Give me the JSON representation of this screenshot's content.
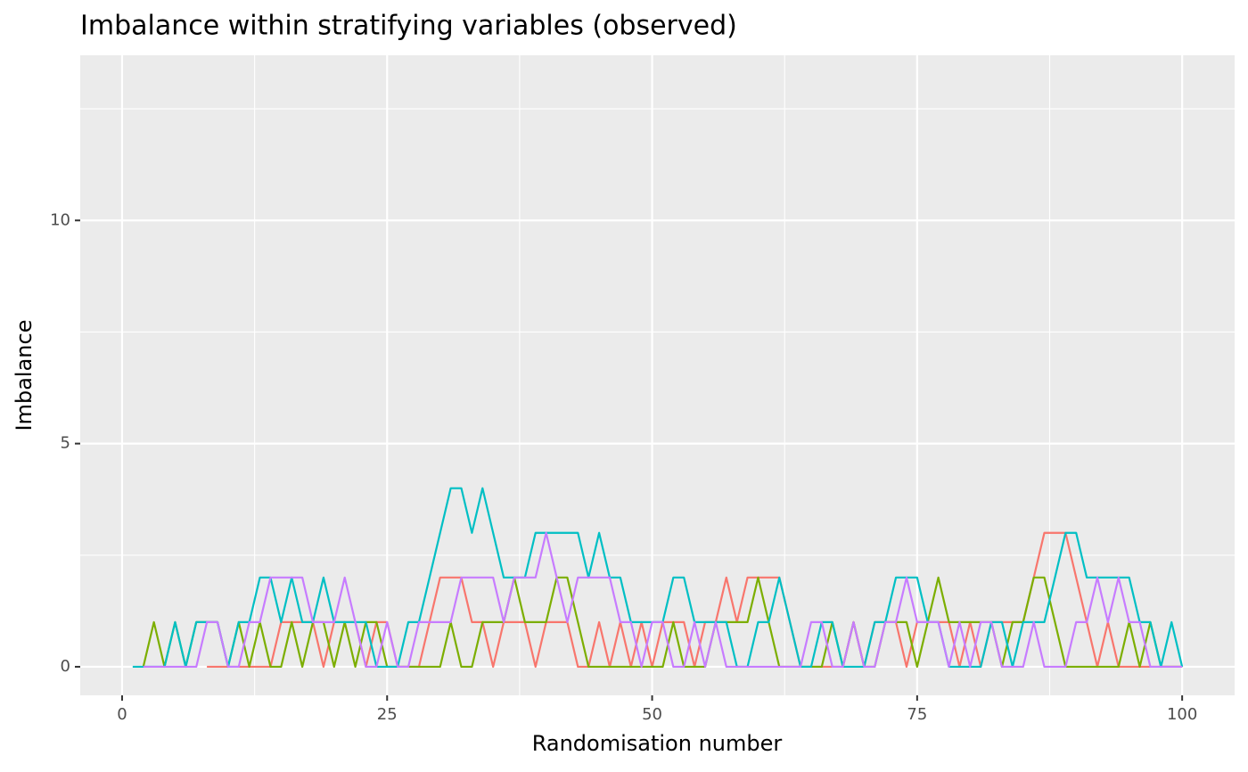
{
  "chart_data": {
    "type": "line",
    "title": "Imbalance within stratifying variables (observed)",
    "x_label": "Randomisation number",
    "y_label": "Imbalance",
    "x": [
      1,
      2,
      3,
      4,
      5,
      6,
      7,
      8,
      9,
      10,
      11,
      12,
      13,
      14,
      15,
      16,
      17,
      18,
      19,
      20,
      21,
      22,
      23,
      24,
      25,
      26,
      27,
      28,
      29,
      30,
      31,
      32,
      33,
      34,
      35,
      36,
      37,
      38,
      39,
      40,
      41,
      42,
      43,
      44,
      45,
      46,
      47,
      48,
      49,
      50,
      51,
      52,
      53,
      54,
      55,
      56,
      57,
      58,
      59,
      60,
      61,
      62,
      63,
      64,
      65,
      66,
      67,
      68,
      69,
      70,
      71,
      72,
      73,
      74,
      75,
      76,
      77,
      78,
      79,
      80,
      81,
      82,
      83,
      84,
      85,
      86,
      87,
      88,
      89,
      90,
      91,
      92,
      93,
      94,
      95,
      96,
      97,
      98,
      99,
      100
    ],
    "series": [
      {
        "color": "#F8766D",
        "values": [
          null,
          null,
          null,
          null,
          null,
          null,
          null,
          0,
          0,
          0,
          0,
          0,
          0,
          0,
          1,
          1,
          1,
          1,
          0,
          1,
          1,
          1,
          0,
          1,
          1,
          0,
          0,
          0,
          1,
          2,
          2,
          2,
          1,
          1,
          0,
          1,
          1,
          1,
          0,
          1,
          1,
          1,
          0,
          0,
          1,
          0,
          1,
          0,
          1,
          0,
          1,
          1,
          1,
          0,
          1,
          1,
          2,
          1,
          2,
          2,
          2,
          2,
          1,
          0,
          0,
          0,
          0,
          0,
          1,
          0,
          1,
          1,
          1,
          0,
          1,
          1,
          1,
          1,
          0,
          1,
          0,
          1,
          1,
          1,
          1,
          2,
          3,
          3,
          3,
          2,
          1,
          0,
          1,
          0,
          0,
          0,
          0,
          0,
          0,
          0
        ]
      },
      {
        "color": "#7CAE00",
        "values": [
          null,
          0,
          1,
          0,
          1,
          0,
          1,
          1,
          1,
          0,
          1,
          0,
          1,
          0,
          0,
          1,
          0,
          1,
          1,
          0,
          1,
          0,
          1,
          1,
          0,
          0,
          0,
          0,
          0,
          0,
          1,
          0,
          0,
          1,
          1,
          1,
          2,
          1,
          1,
          1,
          2,
          2,
          1,
          0,
          0,
          0,
          0,
          0,
          0,
          0,
          0,
          1,
          0,
          0,
          0,
          1,
          1,
          1,
          1,
          2,
          1,
          0,
          0,
          0,
          0,
          0,
          1,
          0,
          1,
          0,
          0,
          1,
          1,
          1,
          0,
          1,
          2,
          1,
          1,
          1,
          1,
          1,
          0,
          1,
          1,
          2,
          2,
          1,
          0,
          0,
          0,
          0,
          0,
          0,
          1,
          0,
          1,
          0,
          0,
          0
        ]
      },
      {
        "color": "#00BFC4",
        "values": [
          0,
          0,
          0,
          0,
          1,
          0,
          1,
          1,
          1,
          0,
          1,
          1,
          2,
          2,
          1,
          2,
          1,
          1,
          2,
          1,
          1,
          1,
          1,
          0,
          0,
          0,
          1,
          1,
          2,
          3,
          4,
          4,
          3,
          4,
          3,
          2,
          2,
          2,
          3,
          3,
          3,
          3,
          3,
          2,
          3,
          2,
          2,
          1,
          1,
          1,
          1,
          2,
          2,
          1,
          1,
          1,
          1,
          0,
          0,
          1,
          1,
          2,
          1,
          0,
          0,
          1,
          1,
          0,
          0,
          0,
          1,
          1,
          2,
          2,
          2,
          1,
          1,
          0,
          0,
          0,
          0,
          1,
          1,
          0,
          1,
          1,
          1,
          2,
          3,
          3,
          2,
          2,
          2,
          2,
          2,
          1,
          1,
          0,
          1,
          0
        ]
      },
      {
        "color": "#C77CFF",
        "values": [
          null,
          0,
          0,
          0,
          0,
          0,
          0,
          1,
          1,
          0,
          0,
          1,
          1,
          2,
          2,
          2,
          2,
          1,
          1,
          1,
          2,
          1,
          0,
          0,
          1,
          0,
          0,
          1,
          1,
          1,
          1,
          2,
          2,
          2,
          2,
          1,
          2,
          2,
          2,
          3,
          2,
          1,
          2,
          2,
          2,
          2,
          1,
          1,
          0,
          1,
          1,
          0,
          0,
          1,
          0,
          1,
          0,
          0,
          0,
          0,
          0,
          0,
          0,
          0,
          1,
          1,
          0,
          0,
          1,
          0,
          0,
          1,
          1,
          2,
          1,
          1,
          1,
          0,
          1,
          0,
          1,
          1,
          0,
          0,
          0,
          1,
          0,
          0,
          0,
          1,
          1,
          2,
          1,
          2,
          1,
          1,
          0,
          0,
          0,
          0
        ]
      }
    ],
    "xlim": [
      -3.95,
      104.95
    ],
    "xticks": [
      0,
      25,
      50,
      75,
      100
    ],
    "ylim": [
      -0.64,
      13.7
    ],
    "yticks": [
      0,
      5,
      10
    ],
    "grid": true
  }
}
